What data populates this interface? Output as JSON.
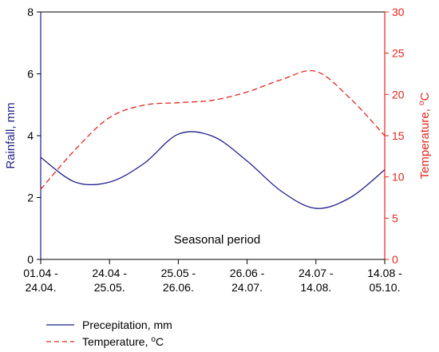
{
  "chart_data": {
    "type": "line",
    "annotation": "Seasonal period",
    "categories": [
      [
        "01.04 -",
        "24.04."
      ],
      [
        "24.04 -",
        "25.05."
      ],
      [
        "25.05 -",
        "26.06."
      ],
      [
        "26.06 -",
        "24.07."
      ],
      [
        "24.07 -",
        "14.08."
      ],
      [
        "14.08 -",
        "05.10."
      ]
    ],
    "y_left": {
      "label": "Rainfall, mm",
      "range": [
        0,
        8
      ],
      "ticks": [
        0,
        2,
        4,
        6,
        8
      ],
      "color": "#1f1f8f"
    },
    "y_right": {
      "label": "Temperature, ",
      "label_superscript": "o",
      "label_suffix": "C",
      "range": [
        0,
        30
      ],
      "ticks": [
        0,
        5,
        10,
        15,
        20,
        25,
        30
      ],
      "color": "#e8261c"
    },
    "series": [
      {
        "name": "Precepitation, mm",
        "axis": "left",
        "color": "#1f1f8f",
        "dash": "solid",
        "x": [
          0,
          0.5,
          1,
          1.5,
          2,
          2.5,
          3,
          3.5,
          4,
          4.5,
          5
        ],
        "values": [
          3.3,
          2.5,
          2.5,
          3.1,
          4.05,
          3.98,
          3.18,
          2.2,
          1.65,
          2.0,
          2.9
        ]
      },
      {
        "name": "Temperature, ",
        "name_superscript": "o",
        "name_suffix": "C",
        "axis": "right",
        "color": "#e8261c",
        "dash": "dashed",
        "x": [
          0,
          0.5,
          1,
          1.5,
          2,
          2.5,
          3,
          3.5,
          4,
          4.5,
          5
        ],
        "values": [
          8.5,
          13.3,
          17.2,
          18.7,
          19.0,
          19.3,
          20.3,
          21.8,
          22.8,
          19.5,
          15.0
        ]
      }
    ],
    "legend_position": "bottom-left"
  }
}
